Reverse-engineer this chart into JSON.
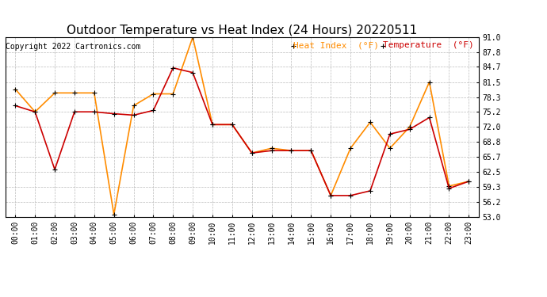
{
  "title": "Outdoor Temperature vs Heat Index (24 Hours) 20220511",
  "copyright": "Copyright 2022 Cartronics.com",
  "legend_heat": "Heat Index  (°F)",
  "legend_temp": "Temperature  (°F)",
  "hours": [
    "00:00",
    "01:00",
    "02:00",
    "03:00",
    "04:00",
    "05:00",
    "06:00",
    "07:00",
    "08:00",
    "09:00",
    "10:00",
    "11:00",
    "12:00",
    "13:00",
    "14:00",
    "15:00",
    "16:00",
    "17:00",
    "18:00",
    "19:00",
    "20:00",
    "21:00",
    "22:00",
    "23:00"
  ],
  "temperature": [
    76.5,
    75.2,
    63.0,
    75.2,
    75.2,
    74.8,
    74.5,
    75.5,
    84.5,
    83.5,
    72.5,
    72.5,
    66.5,
    67.0,
    67.0,
    67.0,
    57.5,
    57.5,
    58.5,
    70.5,
    71.5,
    74.0,
    59.0,
    60.5
  ],
  "heat_index": [
    80.0,
    75.2,
    79.2,
    79.2,
    79.2,
    53.5,
    76.5,
    79.0,
    79.0,
    91.0,
    72.5,
    72.5,
    66.5,
    67.5,
    67.0,
    67.0,
    57.5,
    67.5,
    73.0,
    67.5,
    72.0,
    81.5,
    59.5,
    60.5
  ],
  "temp_color": "#cc0000",
  "heat_color": "#ff8c00",
  "marker": "+",
  "markersize": 5,
  "linewidth": 1.2,
  "ylim_min": 53.0,
  "ylim_max": 91.0,
  "yticks": [
    53.0,
    56.2,
    59.3,
    62.5,
    65.7,
    68.8,
    72.0,
    75.2,
    78.3,
    81.5,
    84.7,
    87.8,
    91.0
  ],
  "background_color": "#ffffff",
  "grid_color": "#bbbbbb",
  "title_fontsize": 11,
  "copyright_fontsize": 7,
  "legend_fontsize": 8,
  "tick_fontsize": 7
}
